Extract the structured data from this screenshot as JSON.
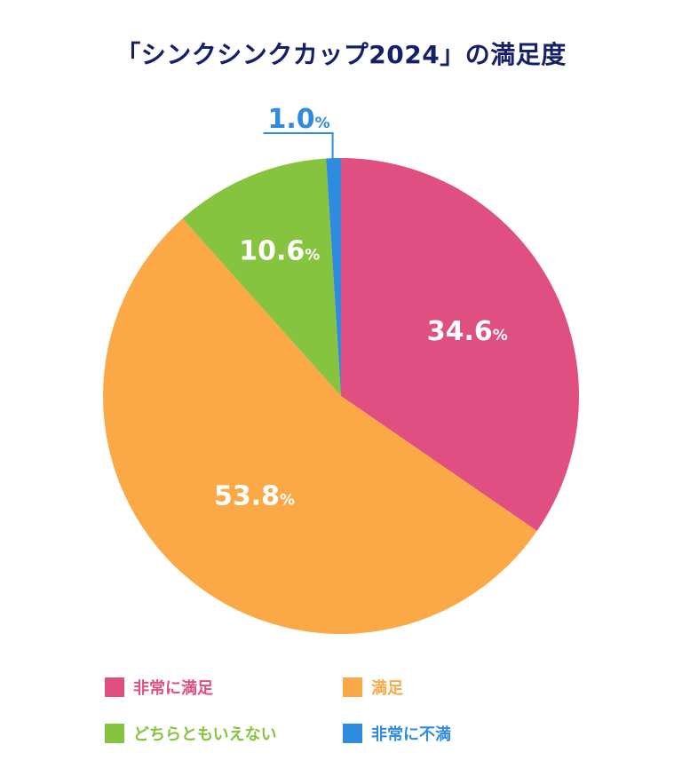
{
  "chart_data": {
    "type": "pie",
    "title": "「シンクシンクカップ2024」の満足度",
    "unit": "%",
    "slices": [
      {
        "label": "非常に満足",
        "value": 34.6,
        "value_text": "34.6",
        "color": "#e04f82"
      },
      {
        "label": "満足",
        "value": 53.8,
        "value_text": "53.8",
        "color": "#fba846"
      },
      {
        "label": "どちらともいえない",
        "value": 10.6,
        "value_text": "10.6",
        "color": "#86c43f"
      },
      {
        "label": "非常に不満",
        "value": 1.0,
        "value_text": "1.0",
        "color": "#2f8be0"
      }
    ],
    "legend_placement": "bottom"
  }
}
